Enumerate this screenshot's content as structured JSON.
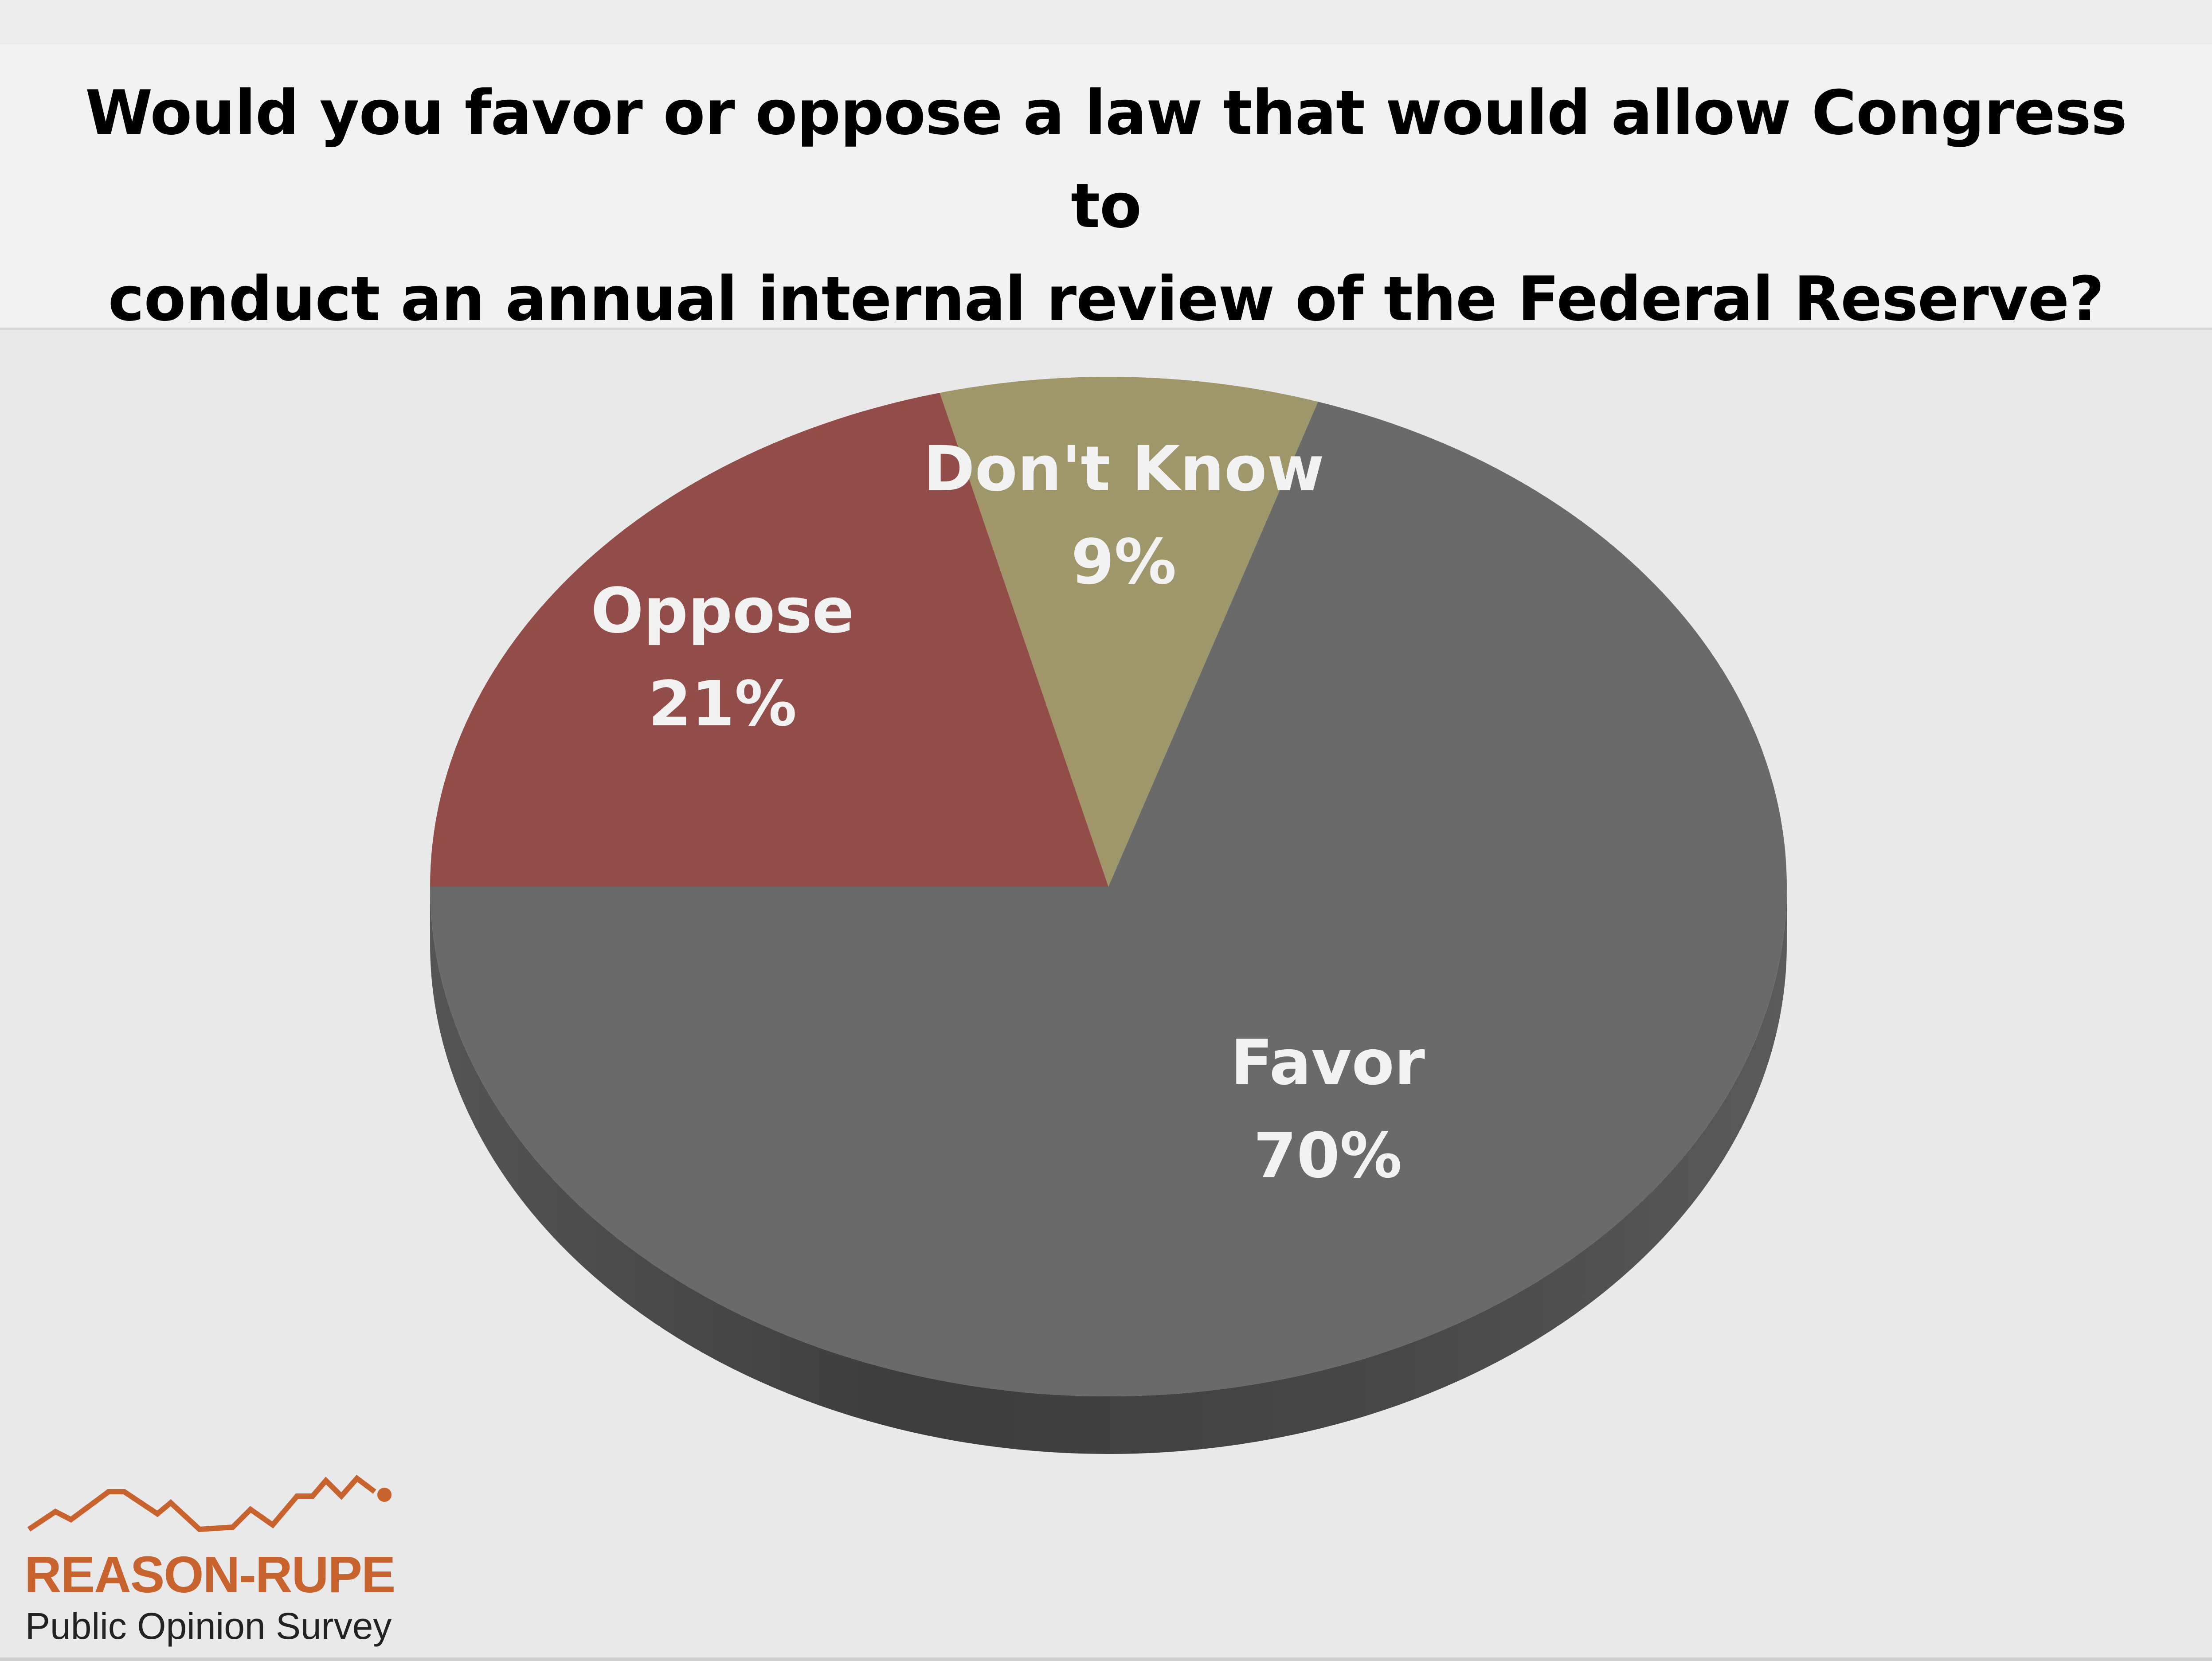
{
  "chart_data": {
    "type": "pie",
    "title": "Would you favor or oppose a law that would allow Congress to\nconduct an annual internal review of the Federal Reserve?",
    "slices": [
      {
        "label": "Oppose",
        "value": 21,
        "value_label": "21%",
        "color": "#934d48"
      },
      {
        "label": "Don't Know",
        "value": 9,
        "value_label": "9%",
        "color": "#9f9669"
      },
      {
        "label": "Favor",
        "value": 70,
        "value_label": "70%",
        "color": "#6a6a6a"
      }
    ],
    "label_color": "#f2f2f2",
    "legend": "none",
    "style": "3d"
  },
  "logo": {
    "brand": "REASON-RUPE",
    "subtitle": "Public Opinion Survey",
    "brand_color": "#c8632e"
  }
}
